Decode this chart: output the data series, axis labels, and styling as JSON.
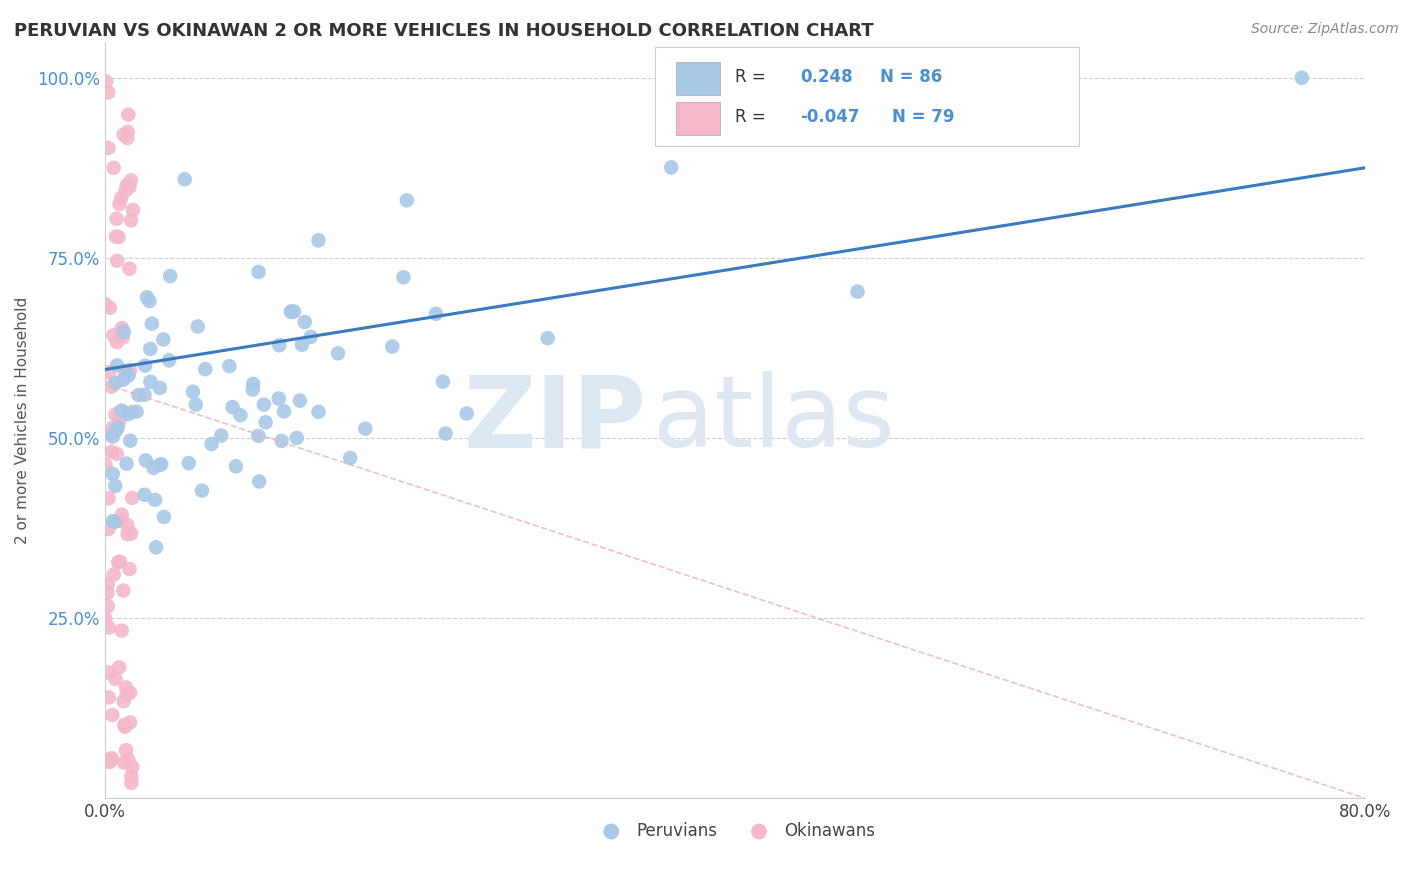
{
  "title": "PERUVIAN VS OKINAWAN 2 OR MORE VEHICLES IN HOUSEHOLD CORRELATION CHART",
  "source": "Source: ZipAtlas.com",
  "ylabel": "2 or more Vehicles in Household",
  "xlim": [
    0.0,
    0.8
  ],
  "ylim": [
    0.0,
    1.05
  ],
  "peruvian_R": 0.248,
  "peruvian_N": 86,
  "okinawan_R": -0.047,
  "okinawan_N": 79,
  "blue_color": "#a8c8e8",
  "pink_color": "#f4b8c8",
  "blue_line_color": "#3a7abf",
  "pink_line_color": "#e8b0be",
  "watermark_zip": "ZIP",
  "watermark_atlas": "atlas",
  "legend_blue_label": "Peruvians",
  "legend_pink_label": "Okinawans",
  "blue_line_y0": 0.595,
  "blue_line_y1": 0.875,
  "pink_line_y0": 0.575,
  "pink_line_y1": 0.0
}
